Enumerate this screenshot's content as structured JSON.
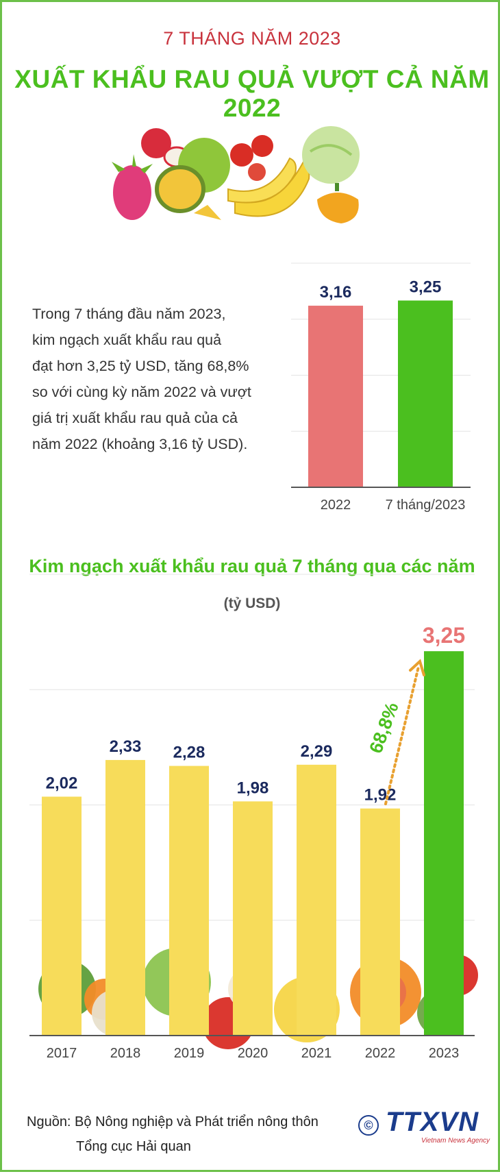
{
  "header": {
    "kicker": "7 THÁNG NĂM 2023",
    "title": "XUẤT KHẨU RAU QUẢ VƯỢT CẢ NĂM 2022"
  },
  "summary_lines": [
    "Trong 7 tháng đầu năm 2023,",
    "kim ngạch xuất khẩu rau quả",
    "đạt hơn 3,25 tỷ USD, tăng 68,8%",
    "so với cùng kỳ năm 2022 và vượt",
    "giá trị xuất khẩu rau quả của cả",
    "năm 2022 (khoảng 3,16 tỷ USD)."
  ],
  "section2": {
    "title": "Kim ngạch xuất khẩu rau quả 7 tháng qua các năm",
    "unit": "(tỷ USD)"
  },
  "footer": {
    "source_line1": "Nguồn: Bộ Nông nghiệp và Phát triển nông thôn",
    "source_line2": "Tổng cục Hải quan",
    "copyright": "©",
    "logo": "TTXVN",
    "logo_sub": "Vietnam News Agency"
  },
  "colors": {
    "accent_green": "#4bbf1f",
    "red_text": "#c8323c",
    "bar_red": "#e87474",
    "bar_green": "#4bbf1f",
    "bar_yellow": "#f7dc5a",
    "label_navy": "#1b2a5e",
    "arrow_orange": "#e8a030"
  },
  "chart_data": [
    {
      "type": "bar",
      "categories": [
        "2022",
        "7 tháng/2023"
      ],
      "values": [
        3.16,
        3.25
      ],
      "value_labels": [
        "3,16",
        "3,25"
      ],
      "colors": [
        "#e87474",
        "#4bbf1f"
      ],
      "ylim": [
        0,
        3.9
      ],
      "grid": true
    },
    {
      "type": "bar",
      "categories": [
        "2017",
        "2018",
        "2019",
        "2020",
        "2021",
        "2022",
        "2023"
      ],
      "values": [
        2.02,
        2.33,
        2.28,
        1.98,
        2.29,
        1.92,
        3.25
      ],
      "value_labels": [
        "2,02",
        "2,33",
        "2,28",
        "1,98",
        "2,29",
        "1,92",
        "3,25"
      ],
      "colors": [
        "#f7dc5a",
        "#f7dc5a",
        "#f7dc5a",
        "#f7dc5a",
        "#f7dc5a",
        "#f7dc5a",
        "#4bbf1f"
      ],
      "ylim": [
        0,
        3.9
      ],
      "grid": true,
      "annotation": "68,8%"
    }
  ]
}
